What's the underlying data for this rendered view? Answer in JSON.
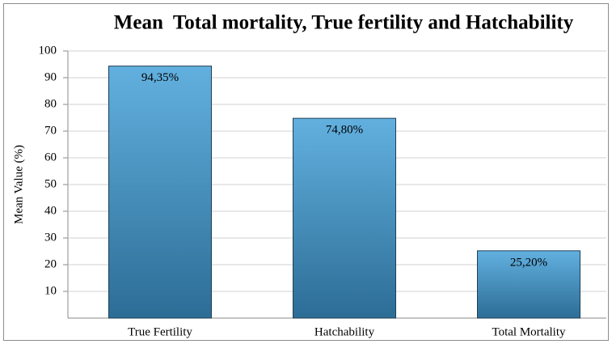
{
  "chart_data": {
    "type": "bar",
    "title": "Mean  Total mortality, True fertility and Hatchability",
    "y_label": "Mean Value (%)",
    "categories": [
      "True Fertility",
      "Hatchability",
      "Total Mortality"
    ],
    "values": [
      94.35,
      74.8,
      25.2
    ],
    "value_labels": [
      "94,35%",
      "74,80%",
      "25,20%"
    ],
    "color": "#62b0df",
    "ylim": [
      0,
      100
    ],
    "yticks": [
      10,
      20,
      30,
      40,
      50,
      60,
      70,
      80,
      90,
      100
    ],
    "grid": true
  }
}
